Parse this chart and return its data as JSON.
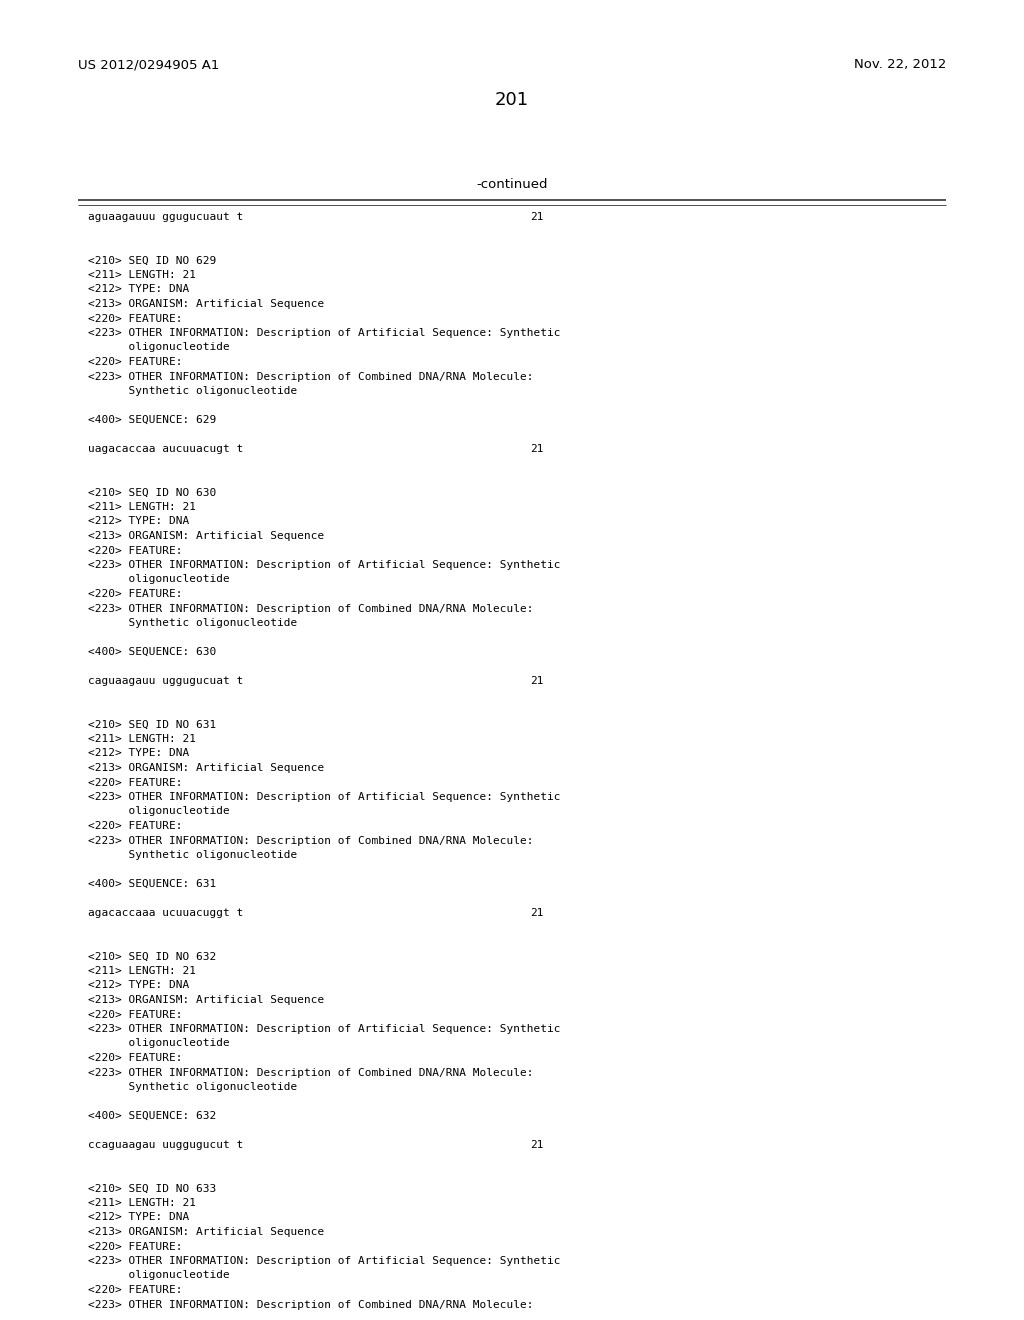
{
  "page_number": "201",
  "top_left": "US 2012/0294905 A1",
  "top_right": "Nov. 22, 2012",
  "continued_label": "-continued",
  "background_color": "#ffffff",
  "text_color": "#000000",
  "lines": [
    {
      "text": "aguaagauuu ggugucuaut t",
      "mono": true,
      "right_num": "21"
    },
    {
      "text": "",
      "mono": false,
      "right_num": ""
    },
    {
      "text": "",
      "mono": false,
      "right_num": ""
    },
    {
      "text": "<210> SEQ ID NO 629",
      "mono": true,
      "right_num": ""
    },
    {
      "text": "<211> LENGTH: 21",
      "mono": true,
      "right_num": ""
    },
    {
      "text": "<212> TYPE: DNA",
      "mono": true,
      "right_num": ""
    },
    {
      "text": "<213> ORGANISM: Artificial Sequence",
      "mono": true,
      "right_num": ""
    },
    {
      "text": "<220> FEATURE:",
      "mono": true,
      "right_num": ""
    },
    {
      "text": "<223> OTHER INFORMATION: Description of Artificial Sequence: Synthetic",
      "mono": true,
      "right_num": ""
    },
    {
      "text": "      oligonucleotide",
      "mono": true,
      "right_num": ""
    },
    {
      "text": "<220> FEATURE:",
      "mono": true,
      "right_num": ""
    },
    {
      "text": "<223> OTHER INFORMATION: Description of Combined DNA/RNA Molecule:",
      "mono": true,
      "right_num": ""
    },
    {
      "text": "      Synthetic oligonucleotide",
      "mono": true,
      "right_num": ""
    },
    {
      "text": "",
      "mono": false,
      "right_num": ""
    },
    {
      "text": "<400> SEQUENCE: 629",
      "mono": true,
      "right_num": ""
    },
    {
      "text": "",
      "mono": false,
      "right_num": ""
    },
    {
      "text": "uagacaccaa aucuuacugt t",
      "mono": true,
      "right_num": "21"
    },
    {
      "text": "",
      "mono": false,
      "right_num": ""
    },
    {
      "text": "",
      "mono": false,
      "right_num": ""
    },
    {
      "text": "<210> SEQ ID NO 630",
      "mono": true,
      "right_num": ""
    },
    {
      "text": "<211> LENGTH: 21",
      "mono": true,
      "right_num": ""
    },
    {
      "text": "<212> TYPE: DNA",
      "mono": true,
      "right_num": ""
    },
    {
      "text": "<213> ORGANISM: Artificial Sequence",
      "mono": true,
      "right_num": ""
    },
    {
      "text": "<220> FEATURE:",
      "mono": true,
      "right_num": ""
    },
    {
      "text": "<223> OTHER INFORMATION: Description of Artificial Sequence: Synthetic",
      "mono": true,
      "right_num": ""
    },
    {
      "text": "      oligonucleotide",
      "mono": true,
      "right_num": ""
    },
    {
      "text": "<220> FEATURE:",
      "mono": true,
      "right_num": ""
    },
    {
      "text": "<223> OTHER INFORMATION: Description of Combined DNA/RNA Molecule:",
      "mono": true,
      "right_num": ""
    },
    {
      "text": "      Synthetic oligonucleotide",
      "mono": true,
      "right_num": ""
    },
    {
      "text": "",
      "mono": false,
      "right_num": ""
    },
    {
      "text": "<400> SEQUENCE: 630",
      "mono": true,
      "right_num": ""
    },
    {
      "text": "",
      "mono": false,
      "right_num": ""
    },
    {
      "text": "caguaagauu uggugucuat t",
      "mono": true,
      "right_num": "21"
    },
    {
      "text": "",
      "mono": false,
      "right_num": ""
    },
    {
      "text": "",
      "mono": false,
      "right_num": ""
    },
    {
      "text": "<210> SEQ ID NO 631",
      "mono": true,
      "right_num": ""
    },
    {
      "text": "<211> LENGTH: 21",
      "mono": true,
      "right_num": ""
    },
    {
      "text": "<212> TYPE: DNA",
      "mono": true,
      "right_num": ""
    },
    {
      "text": "<213> ORGANISM: Artificial Sequence",
      "mono": true,
      "right_num": ""
    },
    {
      "text": "<220> FEATURE:",
      "mono": true,
      "right_num": ""
    },
    {
      "text": "<223> OTHER INFORMATION: Description of Artificial Sequence: Synthetic",
      "mono": true,
      "right_num": ""
    },
    {
      "text": "      oligonucleotide",
      "mono": true,
      "right_num": ""
    },
    {
      "text": "<220> FEATURE:",
      "mono": true,
      "right_num": ""
    },
    {
      "text": "<223> OTHER INFORMATION: Description of Combined DNA/RNA Molecule:",
      "mono": true,
      "right_num": ""
    },
    {
      "text": "      Synthetic oligonucleotide",
      "mono": true,
      "right_num": ""
    },
    {
      "text": "",
      "mono": false,
      "right_num": ""
    },
    {
      "text": "<400> SEQUENCE: 631",
      "mono": true,
      "right_num": ""
    },
    {
      "text": "",
      "mono": false,
      "right_num": ""
    },
    {
      "text": "agacaccaaa ucuuacuggt t",
      "mono": true,
      "right_num": "21"
    },
    {
      "text": "",
      "mono": false,
      "right_num": ""
    },
    {
      "text": "",
      "mono": false,
      "right_num": ""
    },
    {
      "text": "<210> SEQ ID NO 632",
      "mono": true,
      "right_num": ""
    },
    {
      "text": "<211> LENGTH: 21",
      "mono": true,
      "right_num": ""
    },
    {
      "text": "<212> TYPE: DNA",
      "mono": true,
      "right_num": ""
    },
    {
      "text": "<213> ORGANISM: Artificial Sequence",
      "mono": true,
      "right_num": ""
    },
    {
      "text": "<220> FEATURE:",
      "mono": true,
      "right_num": ""
    },
    {
      "text": "<223> OTHER INFORMATION: Description of Artificial Sequence: Synthetic",
      "mono": true,
      "right_num": ""
    },
    {
      "text": "      oligonucleotide",
      "mono": true,
      "right_num": ""
    },
    {
      "text": "<220> FEATURE:",
      "mono": true,
      "right_num": ""
    },
    {
      "text": "<223> OTHER INFORMATION: Description of Combined DNA/RNA Molecule:",
      "mono": true,
      "right_num": ""
    },
    {
      "text": "      Synthetic oligonucleotide",
      "mono": true,
      "right_num": ""
    },
    {
      "text": "",
      "mono": false,
      "right_num": ""
    },
    {
      "text": "<400> SEQUENCE: 632",
      "mono": true,
      "right_num": ""
    },
    {
      "text": "",
      "mono": false,
      "right_num": ""
    },
    {
      "text": "ccaguaagau uuggugucut t",
      "mono": true,
      "right_num": "21"
    },
    {
      "text": "",
      "mono": false,
      "right_num": ""
    },
    {
      "text": "",
      "mono": false,
      "right_num": ""
    },
    {
      "text": "<210> SEQ ID NO 633",
      "mono": true,
      "right_num": ""
    },
    {
      "text": "<211> LENGTH: 21",
      "mono": true,
      "right_num": ""
    },
    {
      "text": "<212> TYPE: DNA",
      "mono": true,
      "right_num": ""
    },
    {
      "text": "<213> ORGANISM: Artificial Sequence",
      "mono": true,
      "right_num": ""
    },
    {
      "text": "<220> FEATURE:",
      "mono": true,
      "right_num": ""
    },
    {
      "text": "<223> OTHER INFORMATION: Description of Artificial Sequence: Synthetic",
      "mono": true,
      "right_num": ""
    },
    {
      "text": "      oligonucleotide",
      "mono": true,
      "right_num": ""
    },
    {
      "text": "<220> FEATURE:",
      "mono": true,
      "right_num": ""
    },
    {
      "text": "<223> OTHER INFORMATION: Description of Combined DNA/RNA Molecule:",
      "mono": true,
      "right_num": ""
    }
  ]
}
